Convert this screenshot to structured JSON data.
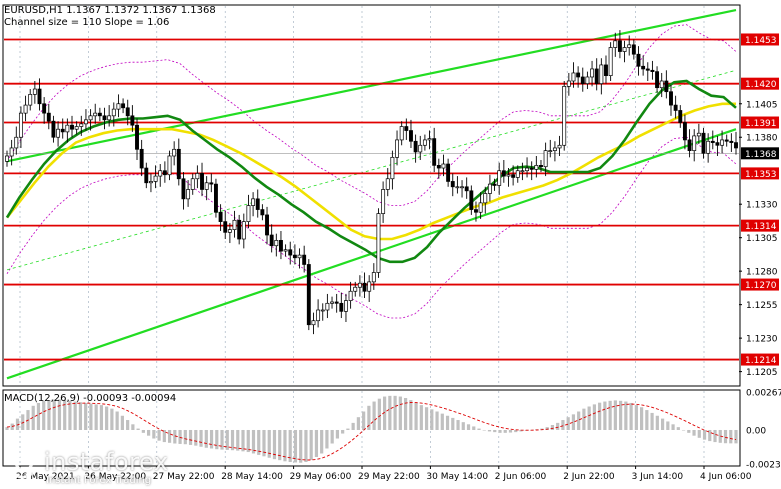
{
  "header": {
    "symbol_line": "EURUSD,H1  1.1367 1.1372 1.1367 1.1368",
    "channel_line": "Channel size = 110 Slope = 1.06"
  },
  "macd": {
    "label": "MACD(12,26,9) -0.00093 -0.00094",
    "ticks": [
      "0.00267",
      "0.00",
      "-0.00239"
    ]
  },
  "watermark": {
    "text": "instaforex",
    "sub": "Instant Forex Trading"
  },
  "colors": {
    "channel": "#22dd22",
    "level": "#e00000",
    "ma_fast": "#118811",
    "ma_slow": "#f0e000",
    "bands": "#c000c0",
    "macd_hist": "#c0c0c0",
    "macd_signal": "#dd0000"
  },
  "chart_data": {
    "type": "candlestick",
    "symbol": "EURUSD",
    "timeframe": "H1",
    "ylim": [
      1.1195,
      1.1478
    ],
    "y_ticks": [
      "1.1405",
      "1.1380",
      "1.1330",
      "1.1305",
      "1.1280",
      "1.1255",
      "1.1230",
      "1.1205"
    ],
    "x_ticks": [
      "26 May 2021",
      "26 May 22:00",
      "27 May 22:00",
      "28 May 14:00",
      "29 May 06:00",
      "29 May 22:00",
      "30 May 14:00",
      "2 Jun 06:00",
      "2 Jun 22:00",
      "3 Jun 14:00",
      "4 Jun 06:00"
    ],
    "levels": [
      {
        "label": "1.1453",
        "value": 1.1453
      },
      {
        "label": "1.1420",
        "value": 1.142
      },
      {
        "label": "1.1391",
        "value": 1.1391
      },
      {
        "label": "1.1353",
        "value": 1.1353
      },
      {
        "label": "1.1314",
        "value": 1.1314
      },
      {
        "label": "1.1270",
        "value": 1.127
      },
      {
        "label": "1.1214",
        "value": 1.1214
      }
    ],
    "current_price": {
      "label": "1.1368",
      "value": 1.1368
    },
    "channel": {
      "upper": [
        [
          0,
          1.1362
        ],
        [
          157,
          1.1475
        ]
      ],
      "lower": [
        [
          0,
          1.12
        ],
        [
          157,
          1.1386
        ]
      ],
      "middle": [
        [
          0,
          1.1281
        ],
        [
          157,
          1.143
        ]
      ]
    },
    "close": [
      1.1366,
      1.1372,
      1.138,
      1.1398,
      1.1404,
      1.1412,
      1.1416,
      1.1405,
      1.1398,
      1.1392,
      1.138,
      1.1386,
      1.1384,
      1.1389,
      1.1386,
      1.1388,
      1.139,
      1.1393,
      1.1396,
      1.1398,
      1.1396,
      1.1393,
      1.1396,
      1.1401,
      1.1405,
      1.1402,
      1.1396,
      1.1389,
      1.1371,
      1.1357,
      1.1346,
      1.1347,
      1.1351,
      1.1355,
      1.1352,
      1.1366,
      1.1371,
      1.1349,
      1.1334,
      1.1341,
      1.1349,
      1.1353,
      1.1341,
      1.1346,
      1.1345,
      1.1324,
      1.1317,
      1.1309,
      1.1311,
      1.1318,
      1.1304,
      1.1317,
      1.1329,
      1.1334,
      1.1326,
      1.1322,
      1.1307,
      1.1299,
      1.1303,
      1.1295,
      1.1296,
      1.1292,
      1.129,
      1.1292,
      1.1285,
      1.124,
      1.1243,
      1.1251,
      1.1251,
      1.1256,
      1.1257,
      1.1256,
      1.125,
      1.1258,
      1.1265,
      1.1268,
      1.1271,
      1.1265,
      1.1272,
      1.1279,
      1.1323,
      1.1341,
      1.1349,
      1.1365,
      1.1378,
      1.1388,
      1.1385,
      1.1377,
      1.1369,
      1.1374,
      1.1378,
      1.1379,
      1.1359,
      1.1357,
      1.136,
      1.1347,
      1.1343,
      1.1343,
      1.1343,
      1.134,
      1.1326,
      1.1324,
      1.1331,
      1.1338,
      1.1345,
      1.1344,
      1.1355,
      1.1351,
      1.1352,
      1.135,
      1.1355,
      1.1355,
      1.1357,
      1.1356,
      1.1359,
      1.1358,
      1.137,
      1.137,
      1.1372,
      1.1374,
      1.1418,
      1.1422,
      1.1428,
      1.1425,
      1.142,
      1.1425,
      1.1431,
      1.142,
      1.1434,
      1.1426,
      1.1447,
      1.1452,
      1.1444,
      1.1447,
      1.1449,
      1.1442,
      1.1433,
      1.1431,
      1.143,
      1.1429,
      1.1417,
      1.1422,
      1.1414,
      1.1404,
      1.14,
      1.1391,
      1.1378,
      1.137,
      1.1381,
      1.1383,
      1.1368,
      1.1377,
      1.1376,
      1.1374,
      1.1378,
      1.1377,
      1.1376,
      1.1372
    ],
    "ma_fast": [
      1.132,
      1.1335,
      1.1348,
      1.136,
      1.137,
      1.1378,
      1.1384,
      1.1388,
      1.1391,
      1.1393,
      1.1394,
      1.1394,
      1.1395,
      1.1396,
      1.1393,
      1.1385,
      1.1378,
      1.1371,
      1.1365,
      1.1358,
      1.135,
      1.1343,
      1.1337,
      1.133,
      1.1324,
      1.1317,
      1.1312,
      1.1306,
      1.1301,
      1.1296,
      1.129,
      1.1287,
      1.1287,
      1.129,
      1.1298,
      1.1309,
      1.1318,
      1.1327,
      1.1335,
      1.1343,
      1.1351,
      1.1357,
      1.1358,
      1.1357,
      1.1354,
      1.1354,
      1.1354,
      1.1354,
      1.1357,
      1.1366,
      1.1378,
      1.1392,
      1.1405,
      1.1415,
      1.1421,
      1.1422,
      1.1416,
      1.1411,
      1.141,
      1.1402
    ],
    "ma_slow": [
      1.132,
      1.1333,
      1.1346,
      1.1358,
      1.1368,
      1.1376,
      1.138,
      1.1383,
      1.1385,
      1.1386,
      1.1386,
      1.1386,
      1.1386,
      1.1384,
      1.1382,
      1.1378,
      1.1373,
      1.1368,
      1.1362,
      1.1356,
      1.135,
      1.1343,
      1.1335,
      1.1327,
      1.1319,
      1.1311,
      1.1306,
      1.1304,
      1.1304,
      1.1307,
      1.1311,
      1.1316,
      1.132,
      1.1324,
      1.1328,
      1.1331,
      1.1335,
      1.1338,
      1.1341,
      1.1344,
      1.1348,
      1.1353,
      1.1359,
      1.1365,
      1.137,
      1.1375,
      1.1381,
      1.1386,
      1.1391,
      1.1396,
      1.14,
      1.1403,
      1.1405,
      1.1405
    ],
    "macd_histogram": [
      0.0002,
      0.00045,
      0.0008,
      0.0011,
      0.0014,
      0.0017,
      0.0019,
      0.00205,
      0.0021,
      0.00215,
      0.00215,
      0.0021,
      0.00205,
      0.002,
      0.00195,
      0.0019,
      0.00185,
      0.0018,
      0.00175,
      0.00165,
      0.0015,
      0.0013,
      0.001,
      0.0007,
      0.0004,
      0.0001,
      -0.0002,
      -0.0004,
      -0.0006,
      -0.00075,
      -0.00085,
      -0.0009,
      -0.00095,
      -0.00098,
      -0.001,
      -0.00105,
      -0.0011,
      -0.00118,
      -0.00125,
      -0.0013,
      -0.00135,
      -0.00138,
      -0.0014,
      -0.00142,
      -0.00145,
      -0.0015,
      -0.00155,
      -0.00165,
      -0.00175,
      -0.00185,
      -0.00195,
      -0.00205,
      -0.00212,
      -0.0022,
      -0.00225,
      -0.00228,
      -0.0023,
      -0.00225,
      -0.0021,
      -0.0019,
      -0.00165,
      -0.0013,
      -0.00095,
      -0.0006,
      -0.00025,
      0.0001,
      0.0005,
      0.0009,
      0.0013,
      0.0017,
      0.002,
      0.0022,
      0.00235,
      0.0024,
      0.0024,
      0.00235,
      0.00225,
      0.0021,
      0.0019,
      0.00175,
      0.0016,
      0.00145,
      0.0013,
      0.00115,
      0.001,
      0.00085,
      0.0007,
      0.00055,
      0.0004,
      0.00025,
      0.0001,
      0.0,
      -0.0001,
      -0.00015,
      -0.0002,
      -0.0002,
      -0.00018,
      -0.00015,
      -0.0001,
      -5e-05,
      0.0,
      5e-05,
      0.0001,
      0.0002,
      0.00035,
      0.0005,
      0.0007,
      0.0009,
      0.0011,
      0.0013,
      0.0015,
      0.00165,
      0.0018,
      0.00192,
      0.002,
      0.00205,
      0.00208,
      0.00205,
      0.002,
      0.0019,
      0.00175,
      0.0016,
      0.0014,
      0.0012,
      0.001,
      0.0008,
      0.0006,
      0.0004,
      0.0002,
      0.0,
      -0.0002,
      -0.0004,
      -0.00055,
      -0.00068,
      -0.00078,
      -0.00085,
      -0.0009,
      -0.00093,
      -0.00094,
      -0.00094
    ]
  }
}
